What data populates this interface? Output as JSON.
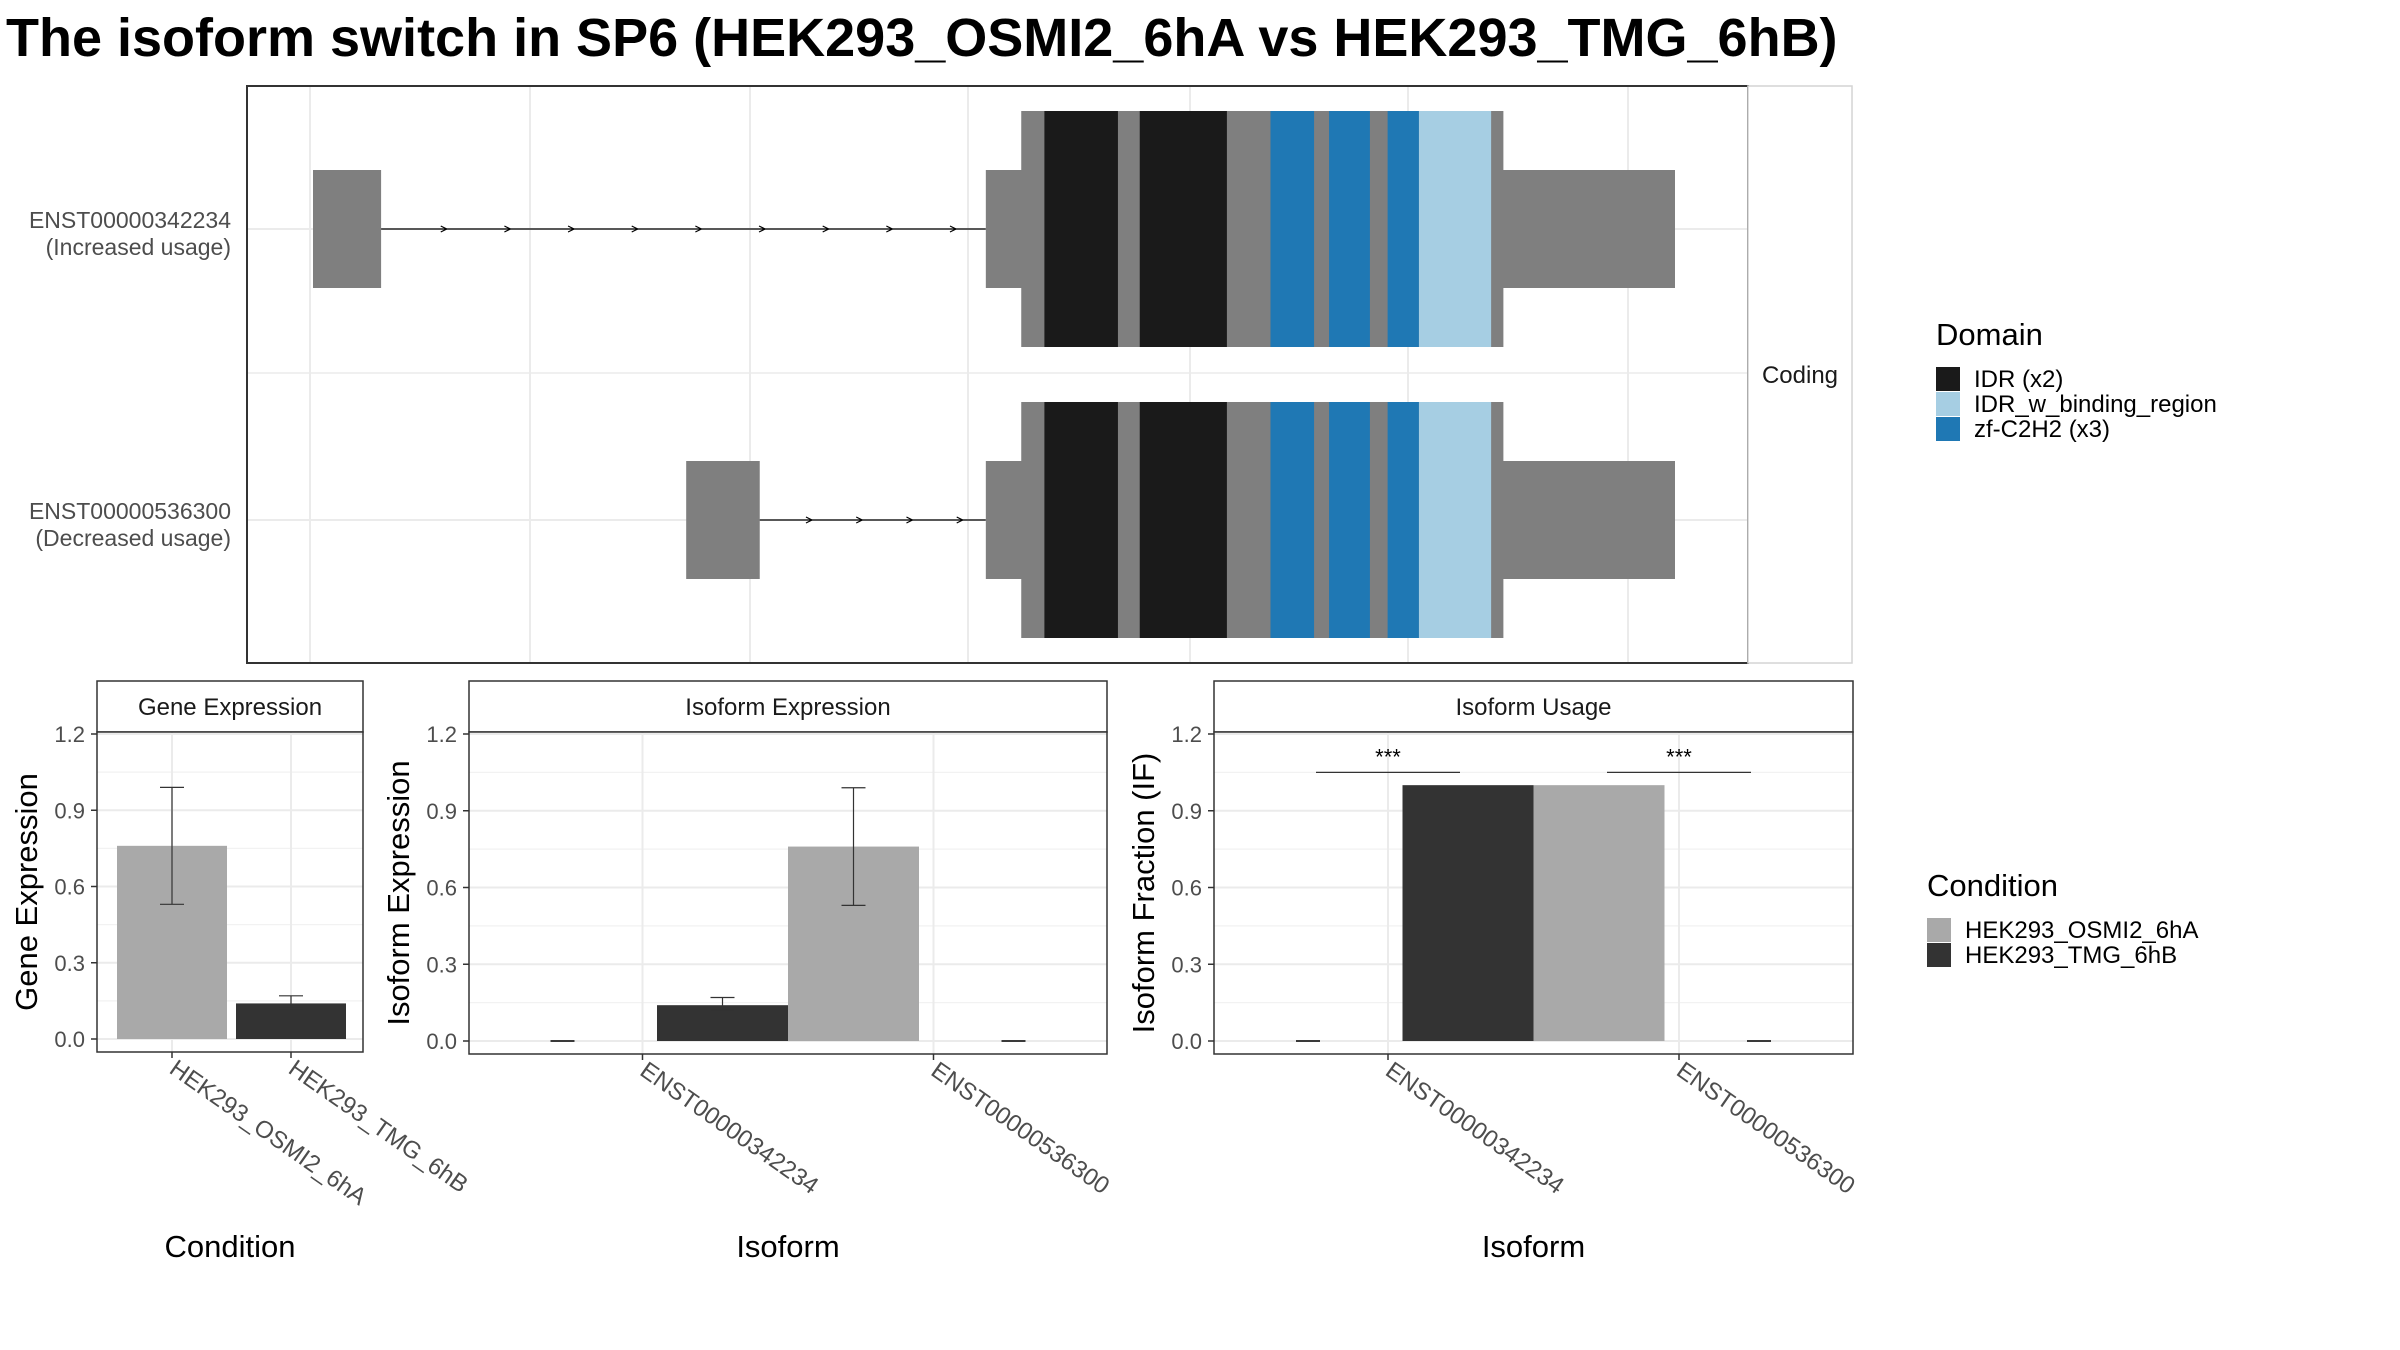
{
  "title": "The isoform switch in SP6 (HEK293_OSMI2_6hA vs HEK293_TMG_6hB)",
  "colors": {
    "exon": "#7f7f7f",
    "intron": "#000000",
    "idr": "#1a1a1a",
    "idr_binding": "#a6cee3",
    "zf": "#1f78b4",
    "cond_a": "#a9a9a9",
    "cond_b": "#333333",
    "grid": "#ebebeb",
    "panel_border": "#333333",
    "strip_bg": "#ffffff"
  },
  "isoform_structure": {
    "strip_label": "Coding",
    "isoforms": [
      {
        "id": "ENST00000342234",
        "label_line1": "ENST00000342234",
        "label_line2": "(Increased usage)",
        "first_exon": [
          0.0,
          0.05
        ],
        "last_exon_start": 0.494
      },
      {
        "id": "ENST00000536300",
        "label_line1": "ENST00000536300",
        "label_line2": "(Decreased usage)",
        "first_exon": [
          0.274,
          0.328
        ],
        "last_exon_start": 0.494
      }
    ],
    "coding_region": [
      0.52,
      0.874
    ],
    "domains": [
      {
        "name": "IDR",
        "start": 0.537,
        "end": 0.591
      },
      {
        "name": "IDR",
        "start": 0.607,
        "end": 0.671
      },
      {
        "name": "zf-C2H2",
        "start": 0.703,
        "end": 0.735
      },
      {
        "name": "zf-C2H2",
        "start": 0.746,
        "end": 0.776
      },
      {
        "name": "zf-C2H2",
        "start": 0.789,
        "end": 0.812
      },
      {
        "name": "IDR_w_binding_region",
        "start": 0.812,
        "end": 0.865
      }
    ],
    "transcript_end": 1.0
  },
  "legends": {
    "domain": {
      "title": "Domain",
      "items": [
        {
          "label": "IDR (x2)",
          "key": "idr"
        },
        {
          "label": "IDR_w_binding_region",
          "key": "idr_binding"
        },
        {
          "label": "zf-C2H2 (x3)",
          "key": "zf"
        }
      ]
    },
    "condition": {
      "title": "Condition",
      "items": [
        {
          "label": "HEK293_OSMI2_6hA",
          "key": "cond_a"
        },
        {
          "label": "HEK293_TMG_6hB",
          "key": "cond_b"
        }
      ]
    }
  },
  "chart_data": [
    {
      "type": "bar",
      "title": "Gene Expression",
      "xlabel": "Condition",
      "ylabel": "Gene Expression",
      "ylim": [
        0,
        1.2
      ],
      "yticks": [
        "0.0",
        "0.3",
        "0.6",
        "0.9",
        "1.2"
      ],
      "categories": [
        "HEK293_OSMI2_6hA",
        "HEK293_TMG_6hB"
      ],
      "series": [
        {
          "name": "HEK293_OSMI2_6hA",
          "values": [
            0.76,
            null
          ],
          "err_low": [
            0.53,
            null
          ],
          "err_high": [
            0.99,
            null
          ]
        },
        {
          "name": "HEK293_TMG_6hB",
          "values": [
            null,
            0.14
          ],
          "err_low": [
            null,
            0.12
          ],
          "err_high": [
            null,
            0.17
          ]
        }
      ]
    },
    {
      "type": "bar",
      "title": "Isoform Expression",
      "xlabel": "Isoform",
      "ylabel": "Isoform Expression",
      "ylim": [
        0,
        1.2
      ],
      "yticks": [
        "0.0",
        "0.3",
        "0.6",
        "0.9",
        "1.2"
      ],
      "categories": [
        "ENST00000342234",
        "ENST00000536300"
      ],
      "series": [
        {
          "name": "HEK293_OSMI2_6hA",
          "values": [
            0.0,
            0.76
          ],
          "err_low": [
            0.0,
            0.53
          ],
          "err_high": [
            0.0,
            0.99
          ]
        },
        {
          "name": "HEK293_TMG_6hB",
          "values": [
            0.14,
            0.0
          ],
          "err_low": [
            0.12,
            0.0
          ],
          "err_high": [
            0.17,
            0.0
          ]
        }
      ]
    },
    {
      "type": "bar",
      "title": "Isoform Usage",
      "xlabel": "Isoform",
      "ylabel": "Isoform Fraction (IF)",
      "ylim": [
        0,
        1.2
      ],
      "yticks": [
        "0.0",
        "0.3",
        "0.6",
        "0.9",
        "1.2"
      ],
      "categories": [
        "ENST00000342234",
        "ENST00000536300"
      ],
      "series": [
        {
          "name": "HEK293_OSMI2_6hA",
          "values": [
            0.0,
            1.0
          ]
        },
        {
          "name": "HEK293_TMG_6hB",
          "values": [
            1.0,
            0.0
          ]
        }
      ],
      "annotations": [
        {
          "category": "ENST00000342234",
          "text": "***",
          "y": 1.05
        },
        {
          "category": "ENST00000536300",
          "text": "***",
          "y": 1.05
        }
      ]
    }
  ]
}
